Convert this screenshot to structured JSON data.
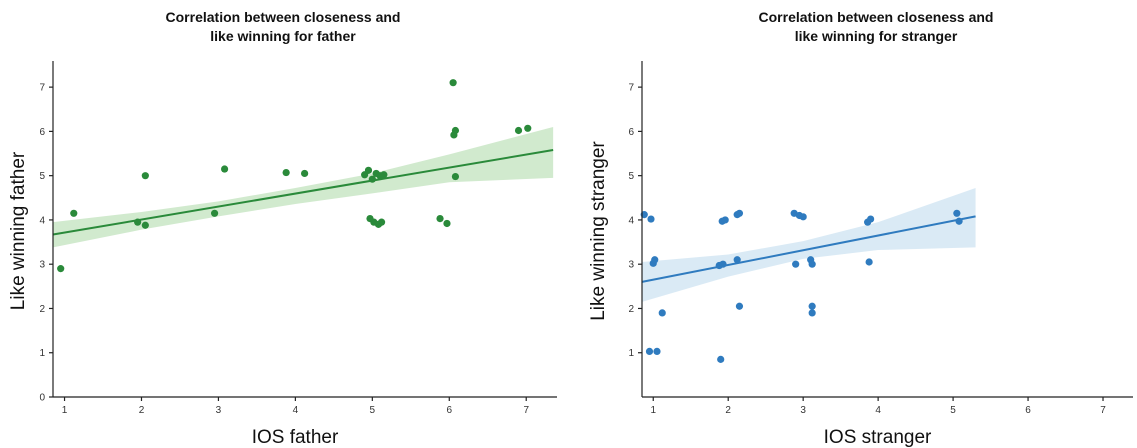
{
  "chart_data": [
    {
      "type": "scatter",
      "title_lines": [
        "Correlation between closeness and",
        "like winning for father"
      ],
      "xlabel": "IOS father",
      "ylabel": "Like winning father",
      "xlim": [
        0.85,
        7.4
      ],
      "ylim": [
        0,
        7.5
      ],
      "xticks": [
        1,
        2,
        3,
        4,
        5,
        6,
        7
      ],
      "yticks": [
        0,
        1,
        2,
        3,
        4,
        5,
        6,
        7
      ],
      "color": "#2a8a3a",
      "band_color": "#c9e6c6",
      "points": [
        [
          0.95,
          2.9
        ],
        [
          1.12,
          4.15
        ],
        [
          1.95,
          3.95
        ],
        [
          2.05,
          3.88
        ],
        [
          2.05,
          5.0
        ],
        [
          2.95,
          4.15
        ],
        [
          3.08,
          5.15
        ],
        [
          3.88,
          5.07
        ],
        [
          4.12,
          5.05
        ],
        [
          4.9,
          5.02
        ],
        [
          4.95,
          5.12
        ],
        [
          5.0,
          4.92
        ],
        [
          5.05,
          5.05
        ],
        [
          5.1,
          5.0
        ],
        [
          5.15,
          5.02
        ],
        [
          4.97,
          4.03
        ],
        [
          5.02,
          3.95
        ],
        [
          5.08,
          3.9
        ],
        [
          5.12,
          3.95
        ],
        [
          5.88,
          4.03
        ],
        [
          5.97,
          3.92
        ],
        [
          6.05,
          7.1
        ],
        [
          6.08,
          6.02
        ],
        [
          6.06,
          5.92
        ],
        [
          6.08,
          4.98
        ],
        [
          6.9,
          6.02
        ],
        [
          7.02,
          6.07
        ]
      ],
      "fit": {
        "x": [
          0.85,
          7.35
        ],
        "y": [
          3.67,
          5.58
        ]
      },
      "ci": {
        "x": [
          0.85,
          2.0,
          3.0,
          4.0,
          5.0,
          6.0,
          7.35
        ],
        "upper": [
          3.95,
          4.18,
          4.42,
          4.72,
          5.05,
          5.48,
          6.1
        ],
        "lower": [
          3.38,
          3.78,
          4.08,
          4.36,
          4.6,
          4.85,
          4.95
        ]
      }
    },
    {
      "type": "scatter",
      "title_lines": [
        "Correlation between closeness and",
        "like winning for stranger"
      ],
      "xlabel": "IOS stranger",
      "ylabel": "Like winning stranger",
      "xlim": [
        0.85,
        7.4
      ],
      "ylim": [
        0,
        7.5
      ],
      "xticks": [
        1,
        2,
        3,
        4,
        5,
        6,
        7
      ],
      "yticks": [
        1,
        2,
        3,
        4,
        5,
        6,
        7
      ],
      "color": "#2f7bbf",
      "band_color": "#d4e6f3",
      "points": [
        [
          0.88,
          4.12
        ],
        [
          0.97,
          4.02
        ],
        [
          1.0,
          3.02
        ],
        [
          1.02,
          3.1
        ],
        [
          1.12,
          1.9
        ],
        [
          0.95,
          1.03
        ],
        [
          1.05,
          1.03
        ],
        [
          1.88,
          2.97
        ],
        [
          1.93,
          3.0
        ],
        [
          1.92,
          3.97
        ],
        [
          1.96,
          4.0
        ],
        [
          1.9,
          0.85
        ],
        [
          2.12,
          4.12
        ],
        [
          2.15,
          4.15
        ],
        [
          2.12,
          3.1
        ],
        [
          2.15,
          2.05
        ],
        [
          2.88,
          4.15
        ],
        [
          2.95,
          4.1
        ],
        [
          3.0,
          4.07
        ],
        [
          2.9,
          3.0
        ],
        [
          3.1,
          3.1
        ],
        [
          3.12,
          3.0
        ],
        [
          3.12,
          2.05
        ],
        [
          3.12,
          1.9
        ],
        [
          3.86,
          3.95
        ],
        [
          3.9,
          4.02
        ],
        [
          3.88,
          3.05
        ],
        [
          5.05,
          4.15
        ],
        [
          5.08,
          3.97
        ]
      ],
      "fit": {
        "x": [
          0.85,
          5.3
        ],
        "y": [
          2.6,
          4.08
        ]
      },
      "ci": {
        "x": [
          0.85,
          2.0,
          3.0,
          4.0,
          5.3
        ],
        "upper": [
          3.05,
          3.22,
          3.52,
          3.95,
          4.72
        ],
        "lower": [
          2.15,
          2.72,
          3.12,
          3.32,
          3.38
        ]
      }
    }
  ]
}
